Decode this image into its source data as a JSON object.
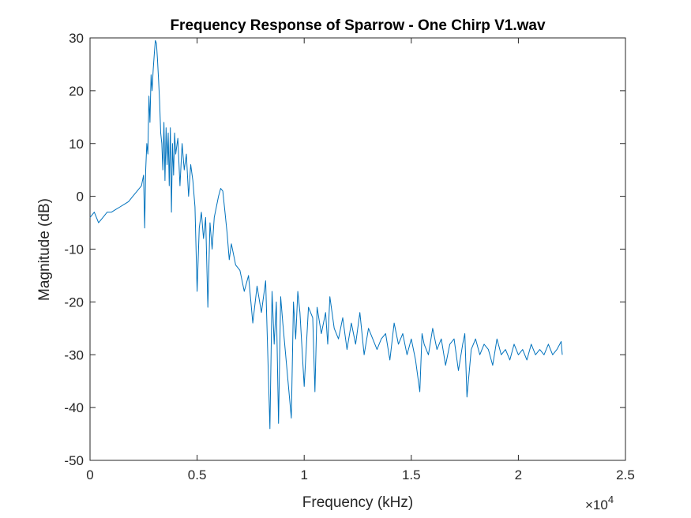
{
  "chart_data": {
    "type": "line",
    "title": "Frequency Response of Sparrow - One Chirp V1.wav",
    "xlabel": "Frequency (kHz)",
    "ylabel": "Magnitude (dB)",
    "xlim": [
      0,
      25000
    ],
    "ylim": [
      -50,
      30
    ],
    "x_ticks": [
      0,
      5000,
      10000,
      15000,
      20000,
      25000
    ],
    "x_tick_labels": [
      "0",
      "0.5",
      "1",
      "1.5",
      "2",
      "2.5"
    ],
    "x_exponent_base": "×10",
    "x_exponent": "4",
    "y_ticks": [
      -50,
      -40,
      -30,
      -20,
      -10,
      0,
      10,
      20,
      30
    ],
    "y_tick_labels": [
      "-50",
      "-40",
      "-30",
      "-20",
      "-10",
      "0",
      "10",
      "20",
      "30"
    ],
    "grid": false,
    "line_color": "#0072BD",
    "series": [
      {
        "x": [
          0,
          200,
          400,
          600,
          800,
          1000,
          1200,
          1400,
          1600,
          1800,
          2000,
          2200,
          2400,
          2500,
          2550,
          2600,
          2650,
          2700,
          2750,
          2800,
          2850,
          2900,
          2950,
          3000,
          3050,
          3100,
          3150,
          3200,
          3250,
          3300,
          3350,
          3400,
          3450,
          3500,
          3550,
          3600,
          3650,
          3700,
          3750,
          3800,
          3850,
          3900,
          3950,
          4000,
          4100,
          4200,
          4300,
          4400,
          4500,
          4600,
          4700,
          4800,
          4900,
          5000,
          5100,
          5200,
          5300,
          5400,
          5500,
          5600,
          5700,
          5800,
          5900,
          6000,
          6100,
          6200,
          6300,
          6400,
          6500,
          6600,
          6700,
          6800,
          7000,
          7200,
          7400,
          7600,
          7800,
          8000,
          8200,
          8400,
          8500,
          8600,
          8700,
          8800,
          8900,
          9000,
          9200,
          9400,
          9500,
          9600,
          9700,
          9800,
          10000,
          10200,
          10400,
          10500,
          10600,
          10800,
          11000,
          11100,
          11200,
          11400,
          11600,
          11800,
          12000,
          12200,
          12400,
          12600,
          12800,
          13000,
          13200,
          13400,
          13600,
          13800,
          14000,
          14200,
          14400,
          14600,
          14800,
          15000,
          15200,
          15400,
          15500,
          15600,
          15800,
          16000,
          16200,
          16400,
          16600,
          16800,
          17000,
          17200,
          17400,
          17500,
          17600,
          17800,
          18000,
          18200,
          18400,
          18600,
          18800,
          19000,
          19200,
          19400,
          19600,
          19800,
          20000,
          20200,
          20400,
          20600,
          20800,
          21000,
          21200,
          21400,
          21600,
          21800,
          22000,
          22050
        ],
        "y": [
          -4,
          -3,
          -5,
          -4,
          -3,
          -3,
          -2.5,
          -2,
          -1.5,
          -1,
          0,
          1,
          2,
          4,
          -6,
          5,
          10,
          8,
          19,
          14,
          23,
          20,
          24,
          27,
          29.5,
          29,
          26,
          22,
          18,
          12,
          10,
          5,
          14,
          3,
          13,
          6,
          12,
          2,
          13,
          -3,
          10,
          4,
          12,
          8,
          11,
          2,
          10,
          5,
          8,
          0,
          6,
          3,
          -2,
          -18,
          -6,
          -3,
          -8,
          -4,
          -21,
          -5,
          -10,
          -4,
          -2,
          0,
          1.5,
          1,
          -3,
          -7,
          -12,
          -9,
          -11,
          -13,
          -14,
          -18,
          -15,
          -24,
          -17,
          -22,
          -16,
          -44,
          -18,
          -28,
          -20,
          -43,
          -19,
          -24,
          -33,
          -42,
          -20,
          -27,
          -18,
          -22,
          -36,
          -21,
          -23,
          -37,
          -21,
          -26,
          -22,
          -28,
          -19,
          -25,
          -27,
          -23,
          -29,
          -24,
          -28,
          -22,
          -30,
          -25,
          -27,
          -29,
          -27,
          -26,
          -31,
          -24,
          -28,
          -26,
          -30,
          -27,
          -31,
          -37,
          -26,
          -28,
          -30,
          -25,
          -29,
          -27,
          -32,
          -28,
          -27,
          -33,
          -28,
          -26,
          -38,
          -29,
          -27,
          -30,
          -28,
          -29,
          -32,
          -27,
          -30,
          -29,
          -31,
          -28,
          -30,
          -29,
          -31,
          -28,
          -30,
          -29,
          -30,
          -28,
          -30,
          -29,
          -27.5,
          -30
        ]
      }
    ]
  }
}
